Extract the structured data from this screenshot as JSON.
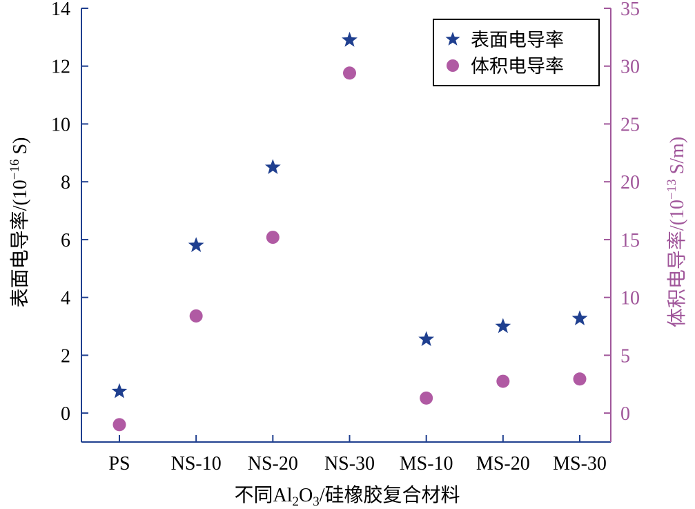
{
  "chart_data": {
    "type": "scatter",
    "title": "",
    "categories": [
      "PS",
      "NS-10",
      "NS-20",
      "NS-30",
      "MS-10",
      "MS-20",
      "MS-30"
    ],
    "xlabel": {
      "prefix": "不同Al",
      "sub1": "2",
      "mid": "O",
      "sub2": "3",
      "suffix": "/硅橡胶复合材料"
    },
    "ylabel_left": {
      "prefix": "表面电导率/(10",
      "sup": "−16",
      "suffix": " S)"
    },
    "ylabel_right": {
      "prefix": "体积电导率/(10",
      "sup": "−13",
      "suffix": " S/m)"
    },
    "ylim_left": [
      -1,
      14
    ],
    "ylim_right": [
      -2.5,
      35
    ],
    "yticks_left": [
      "0",
      "2",
      "4",
      "6",
      "8",
      "10",
      "12",
      "14"
    ],
    "yticks_right": [
      "0",
      "5",
      "10",
      "15",
      "20",
      "25",
      "30",
      "35"
    ],
    "series": [
      {
        "name": "表面电导率",
        "axis": "left",
        "marker": "star",
        "color": "#1f3f8f",
        "values": [
          0.75,
          5.8,
          8.5,
          12.9,
          2.55,
          3.0,
          3.27
        ]
      },
      {
        "name": "体积电导率",
        "axis": "right",
        "marker": "circle",
        "color": "#b05aa3",
        "values": [
          -1.0,
          8.4,
          15.2,
          29.4,
          1.3,
          2.75,
          2.95
        ]
      }
    ],
    "legend_position": "top-right",
    "grid": false,
    "colors": {
      "left_axis": "#000000",
      "right_axis": "#a0569a",
      "frame_left_bottom": "#1f3f8f"
    }
  }
}
